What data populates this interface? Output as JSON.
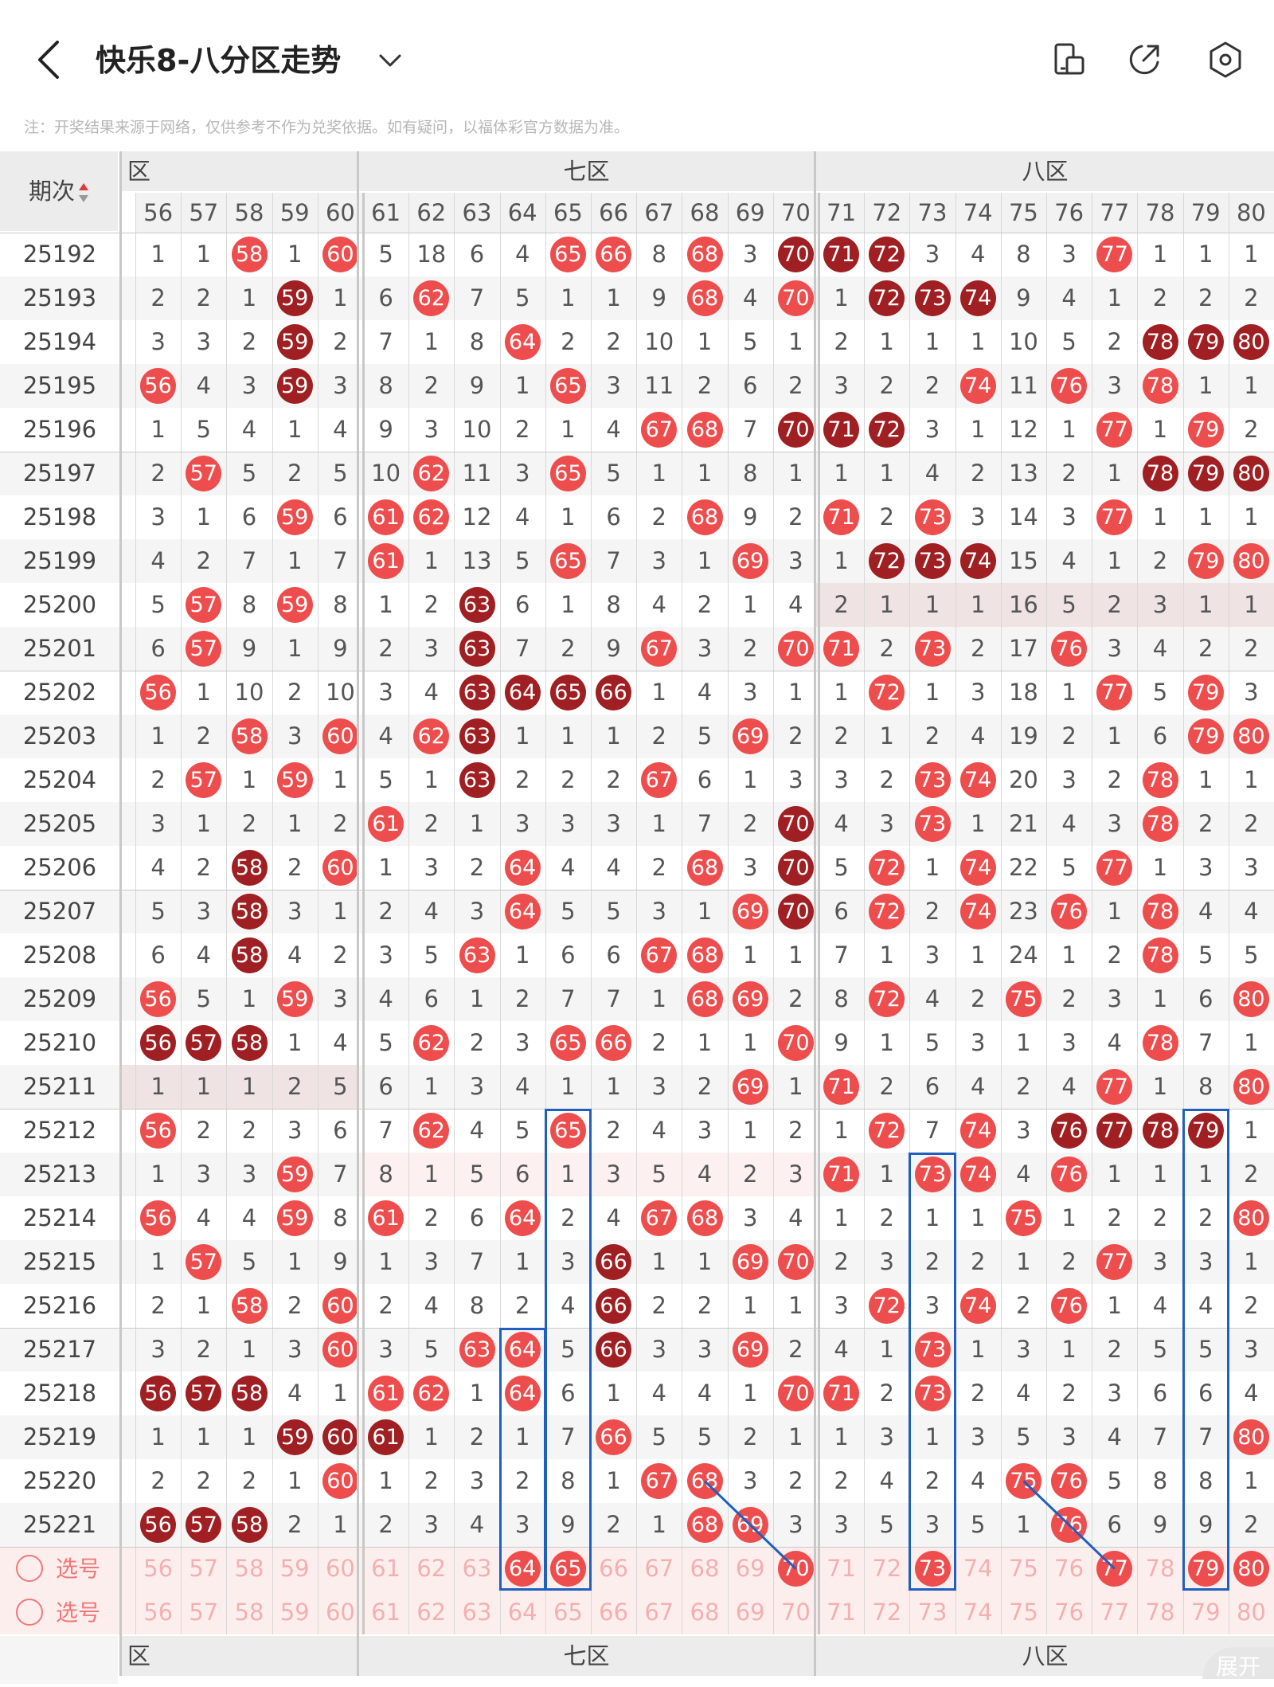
{
  "header": {
    "title": "快乐8-八分区走势",
    "note": "注：开奖结果来源于网络，仅供参考不作为兑奖依据。如有疑问，以福体彩官方数据为准。",
    "icons": [
      "back-arrow-icon",
      "chevron-down-icon",
      "screen-rotate-icon",
      "share-icon",
      "settings-icon"
    ]
  },
  "table": {
    "period_header": "期次",
    "zones": [
      {
        "label": "六区",
        "visible_text": "区"
      },
      {
        "label": "七区"
      },
      {
        "label": "八区"
      }
    ],
    "columns": [
      56,
      57,
      58,
      59,
      60,
      61,
      62,
      63,
      64,
      65,
      66,
      67,
      68,
      69,
      70,
      71,
      72,
      73,
      74,
      75,
      76,
      77,
      78,
      79,
      80
    ],
    "rows": [
      {
        "period": "25192",
        "cells": [
          "1",
          "1",
          "58",
          "1",
          "60",
          "5",
          "18",
          "6",
          "4",
          "65",
          "66",
          "8",
          "68",
          "3",
          "70",
          "71",
          "72",
          "3",
          "4",
          "8",
          "3",
          "77",
          "1",
          "1",
          "1"
        ]
      },
      {
        "period": "25193",
        "cells": [
          "2",
          "2",
          "1",
          "59",
          "1",
          "6",
          "62",
          "7",
          "5",
          "1",
          "1",
          "9",
          "68",
          "4",
          "70",
          "1",
          "72",
          "73",
          "74",
          "9",
          "4",
          "1",
          "2",
          "2",
          "2"
        ]
      },
      {
        "period": "25194",
        "cells": [
          "3",
          "3",
          "2",
          "59",
          "2",
          "7",
          "1",
          "8",
          "64",
          "2",
          "2",
          "10",
          "1",
          "5",
          "1",
          "2",
          "1",
          "1",
          "1",
          "10",
          "5",
          "2",
          "78",
          "79",
          "80"
        ]
      },
      {
        "period": "25195",
        "cells": [
          "56",
          "4",
          "3",
          "59",
          "3",
          "8",
          "2",
          "9",
          "1",
          "65",
          "3",
          "11",
          "2",
          "6",
          "2",
          "3",
          "2",
          "2",
          "74",
          "11",
          "76",
          "3",
          "78",
          "1",
          "1"
        ]
      },
      {
        "period": "25196",
        "cells": [
          "1",
          "5",
          "4",
          "1",
          "4",
          "9",
          "3",
          "10",
          "2",
          "1",
          "4",
          "67",
          "68",
          "7",
          "70",
          "71",
          "72",
          "3",
          "1",
          "12",
          "1",
          "77",
          "1",
          "79",
          "2"
        ]
      },
      {
        "period": "25197",
        "cells": [
          "2",
          "57",
          "5",
          "2",
          "5",
          "10",
          "62",
          "11",
          "3",
          "65",
          "5",
          "1",
          "1",
          "8",
          "1",
          "1",
          "1",
          "4",
          "2",
          "13",
          "2",
          "1",
          "78",
          "79",
          "80"
        ]
      },
      {
        "period": "25198",
        "cells": [
          "3",
          "1",
          "6",
          "59",
          "6",
          "61",
          "62",
          "12",
          "4",
          "1",
          "6",
          "2",
          "68",
          "9",
          "2",
          "71",
          "2",
          "73",
          "3",
          "14",
          "3",
          "77",
          "1",
          "1",
          "1"
        ]
      },
      {
        "period": "25199",
        "cells": [
          "4",
          "2",
          "7",
          "1",
          "7",
          "61",
          "1",
          "13",
          "5",
          "65",
          "7",
          "3",
          "1",
          "69",
          "3",
          "1",
          "72",
          "73",
          "74",
          "15",
          "4",
          "1",
          "2",
          "79",
          "80"
        ]
      },
      {
        "period": "25200",
        "cells": [
          "5",
          "57",
          "8",
          "59",
          "8",
          "1",
          "2",
          "63",
          "6",
          "1",
          "8",
          "4",
          "2",
          "1",
          "4",
          "2",
          "1",
          "1",
          "1",
          "16",
          "5",
          "2",
          "3",
          "1",
          "1"
        ]
      },
      {
        "period": "25201",
        "cells": [
          "6",
          "57",
          "9",
          "1",
          "9",
          "2",
          "3",
          "63",
          "7",
          "2",
          "9",
          "67",
          "3",
          "2",
          "70",
          "71",
          "2",
          "73",
          "2",
          "17",
          "76",
          "3",
          "4",
          "2",
          "2"
        ]
      },
      {
        "period": "25202",
        "cells": [
          "56",
          "1",
          "10",
          "2",
          "10",
          "3",
          "4",
          "63",
          "64",
          "65",
          "66",
          "1",
          "4",
          "3",
          "1",
          "1",
          "72",
          "1",
          "3",
          "18",
          "1",
          "77",
          "5",
          "79",
          "3"
        ]
      },
      {
        "period": "25203",
        "cells": [
          "1",
          "2",
          "58",
          "3",
          "60",
          "4",
          "62",
          "63",
          "1",
          "1",
          "1",
          "2",
          "5",
          "69",
          "2",
          "2",
          "1",
          "2",
          "4",
          "19",
          "2",
          "1",
          "6",
          "79",
          "80"
        ]
      },
      {
        "period": "25204",
        "cells": [
          "2",
          "57",
          "1",
          "59",
          "1",
          "5",
          "1",
          "63",
          "2",
          "2",
          "2",
          "67",
          "6",
          "1",
          "3",
          "3",
          "2",
          "73",
          "74",
          "20",
          "3",
          "2",
          "78",
          "1",
          "1"
        ]
      },
      {
        "period": "25205",
        "cells": [
          "3",
          "1",
          "2",
          "1",
          "2",
          "61",
          "2",
          "1",
          "3",
          "3",
          "3",
          "1",
          "7",
          "2",
          "70",
          "4",
          "3",
          "73",
          "1",
          "21",
          "4",
          "3",
          "78",
          "2",
          "2"
        ]
      },
      {
        "period": "25206",
        "cells": [
          "4",
          "2",
          "58",
          "2",
          "60",
          "1",
          "3",
          "2",
          "64",
          "4",
          "4",
          "2",
          "68",
          "3",
          "70",
          "5",
          "72",
          "1",
          "74",
          "22",
          "5",
          "77",
          "1",
          "3",
          "3"
        ]
      },
      {
        "period": "25207",
        "cells": [
          "5",
          "3",
          "58",
          "3",
          "1",
          "2",
          "4",
          "3",
          "64",
          "5",
          "5",
          "3",
          "1",
          "69",
          "70",
          "6",
          "72",
          "2",
          "74",
          "23",
          "76",
          "1",
          "78",
          "4",
          "4"
        ]
      },
      {
        "period": "25208",
        "cells": [
          "6",
          "4",
          "58",
          "4",
          "2",
          "3",
          "5",
          "63",
          "1",
          "6",
          "6",
          "67",
          "68",
          "1",
          "1",
          "7",
          "1",
          "3",
          "1",
          "24",
          "1",
          "2",
          "78",
          "5",
          "5"
        ]
      },
      {
        "period": "25209",
        "cells": [
          "56",
          "5",
          "1",
          "59",
          "3",
          "4",
          "6",
          "1",
          "2",
          "7",
          "7",
          "1",
          "68",
          "69",
          "2",
          "8",
          "72",
          "4",
          "2",
          "75",
          "2",
          "3",
          "1",
          "6",
          "80"
        ]
      },
      {
        "period": "25210",
        "cells": [
          "56",
          "57",
          "58",
          "1",
          "4",
          "5",
          "62",
          "2",
          "3",
          "65",
          "66",
          "2",
          "1",
          "1",
          "70",
          "9",
          "1",
          "5",
          "3",
          "1",
          "3",
          "4",
          "78",
          "7",
          "1"
        ]
      },
      {
        "period": "25211",
        "cells": [
          "1",
          "1",
          "1",
          "2",
          "5",
          "6",
          "1",
          "3",
          "4",
          "1",
          "1",
          "3",
          "2",
          "69",
          "1",
          "71",
          "2",
          "6",
          "4",
          "2",
          "4",
          "77",
          "1",
          "8",
          "80"
        ]
      },
      {
        "period": "25212",
        "cells": [
          "56",
          "2",
          "2",
          "3",
          "6",
          "7",
          "62",
          "4",
          "5",
          "65",
          "2",
          "4",
          "3",
          "1",
          "2",
          "1",
          "72",
          "7",
          "74",
          "3",
          "76",
          "77",
          "78",
          "79",
          "1"
        ]
      },
      {
        "period": "25213",
        "cells": [
          "1",
          "3",
          "3",
          "59",
          "7",
          "8",
          "1",
          "5",
          "6",
          "1",
          "3",
          "5",
          "4",
          "2",
          "3",
          "71",
          "1",
          "73",
          "74",
          "4",
          "76",
          "1",
          "1",
          "1",
          "2"
        ]
      },
      {
        "period": "25214",
        "cells": [
          "56",
          "4",
          "4",
          "59",
          "8",
          "61",
          "2",
          "6",
          "64",
          "2",
          "4",
          "67",
          "68",
          "3",
          "4",
          "1",
          "2",
          "1",
          "1",
          "75",
          "1",
          "2",
          "2",
          "2",
          "80"
        ]
      },
      {
        "period": "25215",
        "cells": [
          "1",
          "57",
          "5",
          "1",
          "9",
          "1",
          "3",
          "7",
          "1",
          "3",
          "66",
          "1",
          "1",
          "69",
          "70",
          "2",
          "3",
          "2",
          "2",
          "1",
          "2",
          "77",
          "3",
          "3",
          "1"
        ]
      },
      {
        "period": "25216",
        "cells": [
          "2",
          "1",
          "58",
          "2",
          "60",
          "2",
          "4",
          "8",
          "2",
          "4",
          "66",
          "2",
          "2",
          "1",
          "1",
          "3",
          "72",
          "3",
          "74",
          "2",
          "76",
          "1",
          "4",
          "4",
          "2"
        ]
      },
      {
        "period": "25217",
        "cells": [
          "3",
          "2",
          "1",
          "3",
          "60",
          "3",
          "5",
          "63",
          "64",
          "5",
          "66",
          "3",
          "3",
          "69",
          "2",
          "4",
          "1",
          "73",
          "1",
          "3",
          "1",
          "2",
          "5",
          "5",
          "3"
        ]
      },
      {
        "period": "25218",
        "cells": [
          "56",
          "57",
          "58",
          "4",
          "1",
          "61",
          "62",
          "1",
          "64",
          "6",
          "1",
          "4",
          "4",
          "1",
          "70",
          "71",
          "2",
          "73",
          "2",
          "4",
          "2",
          "3",
          "6",
          "6",
          "4"
        ]
      },
      {
        "period": "25219",
        "cells": [
          "1",
          "1",
          "1",
          "59",
          "60",
          "61",
          "1",
          "2",
          "1",
          "7",
          "66",
          "5",
          "5",
          "2",
          "1",
          "1",
          "3",
          "1",
          "3",
          "5",
          "3",
          "4",
          "7",
          "7",
          "80"
        ]
      },
      {
        "period": "25220",
        "cells": [
          "2",
          "2",
          "2",
          "1",
          "60",
          "1",
          "2",
          "3",
          "2",
          "8",
          "1",
          "67",
          "68",
          "3",
          "2",
          "2",
          "4",
          "2",
          "4",
          "75",
          "76",
          "5",
          "8",
          "8",
          "1"
        ]
      },
      {
        "period": "25221",
        "cells": [
          "56",
          "57",
          "58",
          "2",
          "1",
          "2",
          "3",
          "4",
          "3",
          "9",
          "2",
          "1",
          "68",
          "69",
          "3",
          "3",
          "5",
          "3",
          "5",
          "1",
          "76",
          "6",
          "9",
          "9",
          "2"
        ]
      }
    ],
    "selection_rows": [
      {
        "label": "选号",
        "highlighted": [
          "64",
          "65",
          "70",
          "73",
          "77",
          "79",
          "80"
        ]
      },
      {
        "label": "选号",
        "highlighted": []
      }
    ],
    "expand_label": "展开"
  },
  "colors": {
    "ball_red": "#ee4d4d",
    "ball_dark": "#9f1f22",
    "box_blue": "#1f5fbf",
    "select_pink": "#f07878"
  }
}
